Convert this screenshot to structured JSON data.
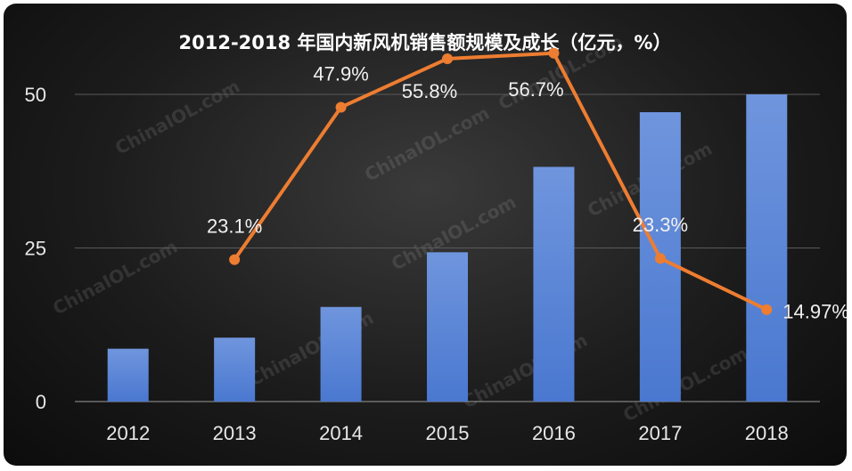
{
  "chart_data": {
    "type": "bar",
    "title": "2012-2018 年国内新风机销售额规模及成长（亿元，%）",
    "categories": [
      "2012",
      "2013",
      "2014",
      "2015",
      "2016",
      "2017",
      "2018"
    ],
    "series": [
      {
        "type": "bar",
        "values": [
          8.6,
          10.4,
          15.4,
          24.3,
          38.2,
          47.1,
          50.0
        ]
      },
      {
        "type": "line",
        "values": [
          null,
          23.1,
          47.9,
          55.8,
          56.7,
          23.3,
          14.97
        ],
        "labels": [
          "",
          "23.1%",
          "47.9%",
          "55.8%",
          "56.7%",
          "23.3%",
          "14.97%"
        ]
      }
    ],
    "yticks": [
      "0",
      "25",
      "50"
    ],
    "ylim": [
      0,
      50
    ],
    "grid": true,
    "watermark": "ChinaIOL.com",
    "colors": {
      "bar": "#4a78d0",
      "bar_top": "#6f95dd",
      "line": "#ed7d31",
      "background": "#1c1c1c"
    }
  }
}
